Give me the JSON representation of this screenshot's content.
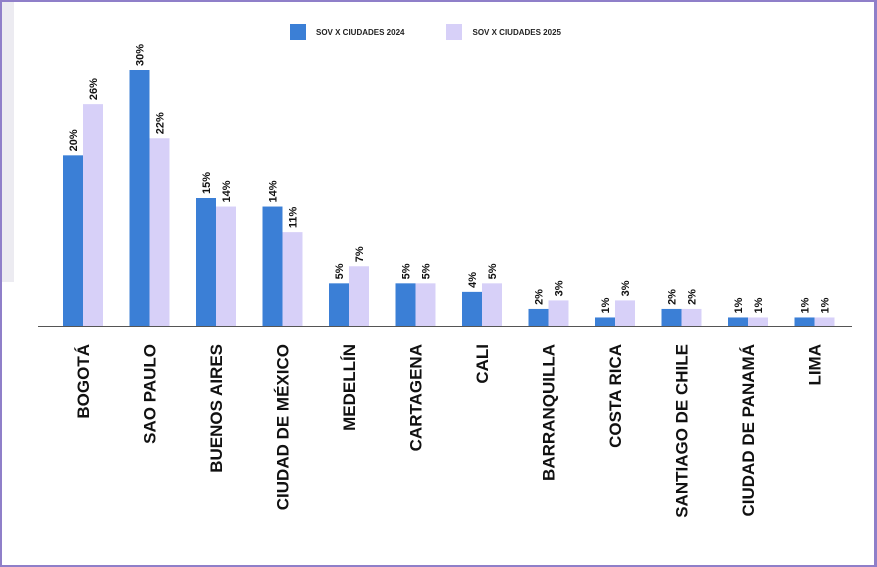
{
  "chart_data": {
    "type": "bar",
    "categories": [
      "BOGOTÁ",
      "SAO PAULO",
      "BUENOS AIRES",
      "CIUDAD DE MÉXICO",
      "MEDELLÍN",
      "CARTAGENA",
      "CALI",
      "BARRANQUILLA",
      "COSTA RICA",
      "SANTIAGO DE CHILE",
      "CIUDAD DE PANAMÁ",
      "LIMA"
    ],
    "series": [
      {
        "name": "SOV X CIUDADES 2024",
        "values": [
          20,
          30,
          15,
          14,
          5,
          5,
          4,
          2,
          1,
          2,
          1,
          1
        ],
        "labels": [
          "20%",
          "30%",
          "15%",
          "14%",
          "5%",
          "5%",
          "4%",
          "2%",
          "1%",
          "2%",
          "1%",
          "1%"
        ],
        "color": "#3b7fd6"
      },
      {
        "name": "SOV X CIUDADES 2025",
        "values": [
          26,
          22,
          14,
          11,
          7,
          5,
          5,
          3,
          3,
          2,
          1,
          1
        ],
        "labels": [
          "26%",
          "22%",
          "14%",
          "11%",
          "7%",
          "5%",
          "5%",
          "3%",
          "3%",
          "2%",
          "1%",
          "1%"
        ],
        "color": "#d7d0f8"
      }
    ],
    "ylim": [
      0,
      30
    ],
    "grid": false,
    "legend": "top"
  },
  "colors": {
    "frame": "#8f7fc9",
    "axis": "#555555"
  }
}
